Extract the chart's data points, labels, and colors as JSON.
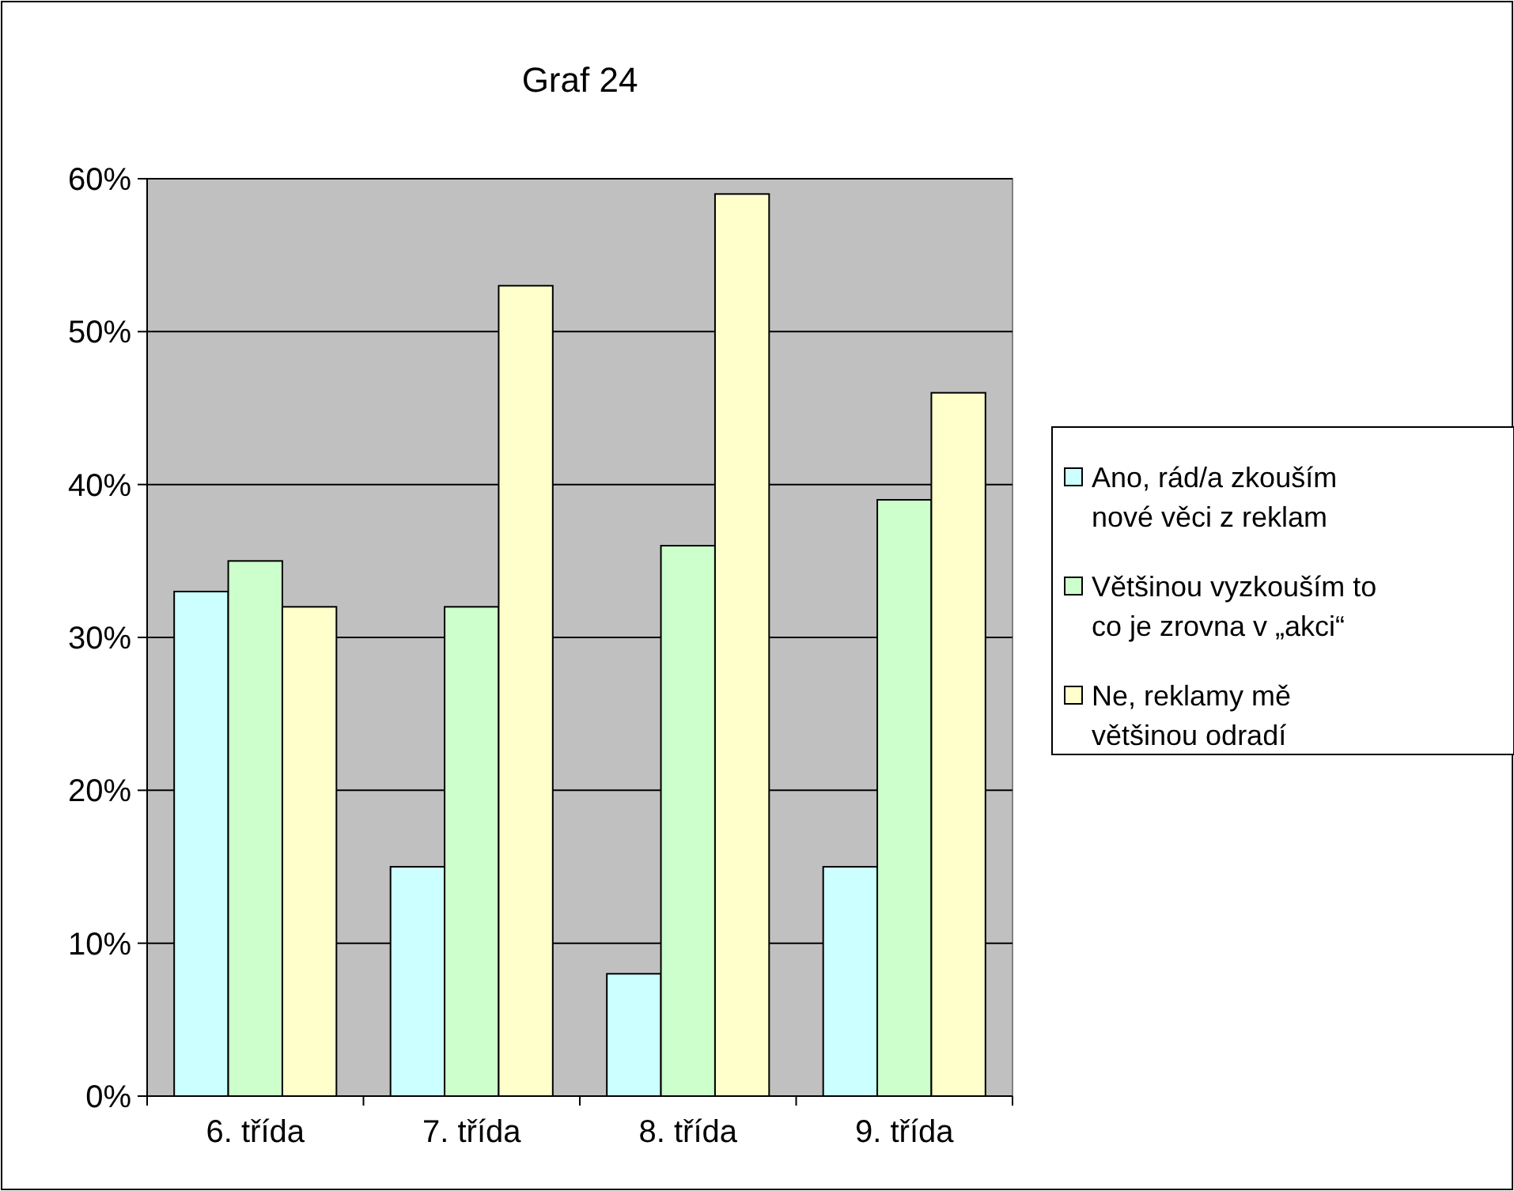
{
  "chart_data": {
    "type": "bar",
    "title": "Graf 24",
    "categories": [
      "6. třída",
      "7. třída",
      "8. třída",
      "9. třída"
    ],
    "series": [
      {
        "name": "Ano, rád/a zkouším nové věci z reklam",
        "color": "#ccffff",
        "values": [
          33,
          15,
          8,
          15
        ]
      },
      {
        "name": "Většinou vyzkouším to co je zrovna v „akci“",
        "color": "#ccffcc",
        "values": [
          35,
          32,
          36,
          39
        ]
      },
      {
        "name": "Ne, reklamy mě většinou odradí",
        "color": "#ffffcc",
        "values": [
          32,
          53,
          59,
          46
        ]
      }
    ],
    "ylim": [
      0,
      60
    ],
    "yticks": [
      {
        "value": 0,
        "label": "0%"
      },
      {
        "value": 10,
        "label": "10%"
      },
      {
        "value": 20,
        "label": "20%"
      },
      {
        "value": 30,
        "label": "30%"
      },
      {
        "value": 40,
        "label": "40%"
      },
      {
        "value": 50,
        "label": "50%"
      },
      {
        "value": 60,
        "label": "60%"
      }
    ],
    "grid": "y",
    "legend": "right"
  }
}
